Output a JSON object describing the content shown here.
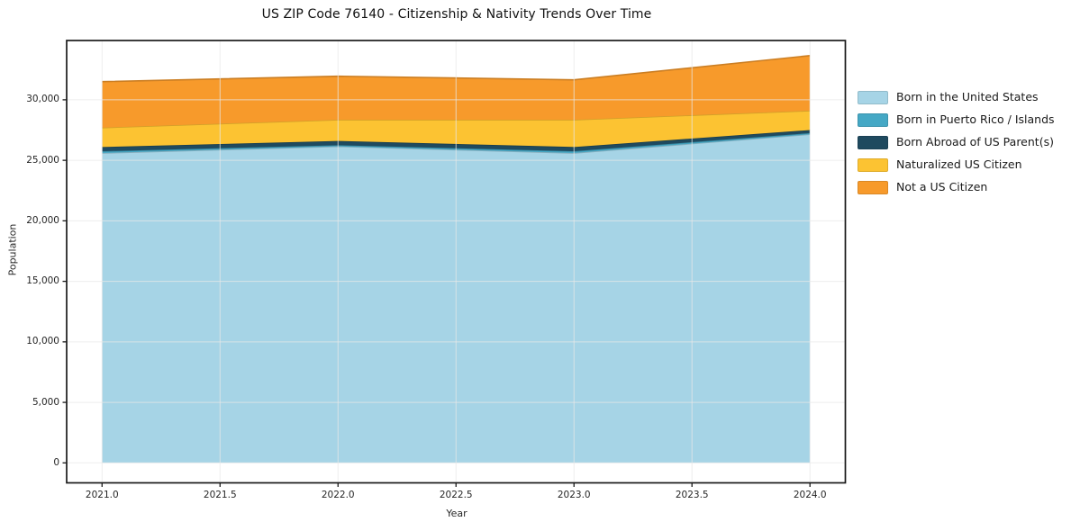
{
  "title": "US ZIP Code 76140 - Citizenship & Nativity Trends Over Time",
  "chart_data": {
    "type": "area",
    "stacked": true,
    "title": "US ZIP Code 76140 - Citizenship & Nativity Trends Over Time",
    "xlabel": "Year",
    "ylabel": "Population",
    "grid": true,
    "legend_position": "right-outside",
    "x": [
      2021,
      2022,
      2023,
      2024
    ],
    "x_ticks": [
      2021.0,
      2021.5,
      2022.0,
      2022.5,
      2023.0,
      2023.5,
      2024.0
    ],
    "x_tick_labels": [
      "2021.0",
      "2021.5",
      "2022.0",
      "2022.5",
      "2023.0",
      "2023.5",
      "2024.0"
    ],
    "y_ticks": [
      0,
      5000,
      10000,
      15000,
      20000,
      25000,
      30000
    ],
    "y_tick_labels": [
      "0",
      "5,000",
      "10,000",
      "15,000",
      "20,000",
      "25,000",
      "30,000"
    ],
    "xlim": [
      2020.85,
      2024.15
    ],
    "ylim": [
      -1650,
      34900
    ],
    "series": [
      {
        "name": "Born in the United States",
        "color": "#a6d4e6",
        "values": [
          25600,
          26150,
          25600,
          27150
        ]
      },
      {
        "name": "Born in Puerto Rico / Islands",
        "color": "#45a8c5",
        "values": [
          150,
          100,
          150,
          100
        ]
      },
      {
        "name": "Born Abroad of US Parent(s)",
        "color": "#1f4a5f",
        "values": [
          350,
          350,
          350,
          250
        ]
      },
      {
        "name": "Naturalized US Citizen",
        "color": "#fcc332",
        "values": [
          1600,
          1750,
          2250,
          1600
        ]
      },
      {
        "name": "Not a US Citizen",
        "color": "#f79a2b",
        "values": [
          3800,
          3600,
          3300,
          4550
        ]
      }
    ],
    "totals": [
      31500,
      31950,
      31650,
      33650
    ],
    "colors": {
      "frame": "#1a1a1a",
      "gridline": "#e8e8e8",
      "background": "#ffffff",
      "text": "#262626"
    }
  }
}
